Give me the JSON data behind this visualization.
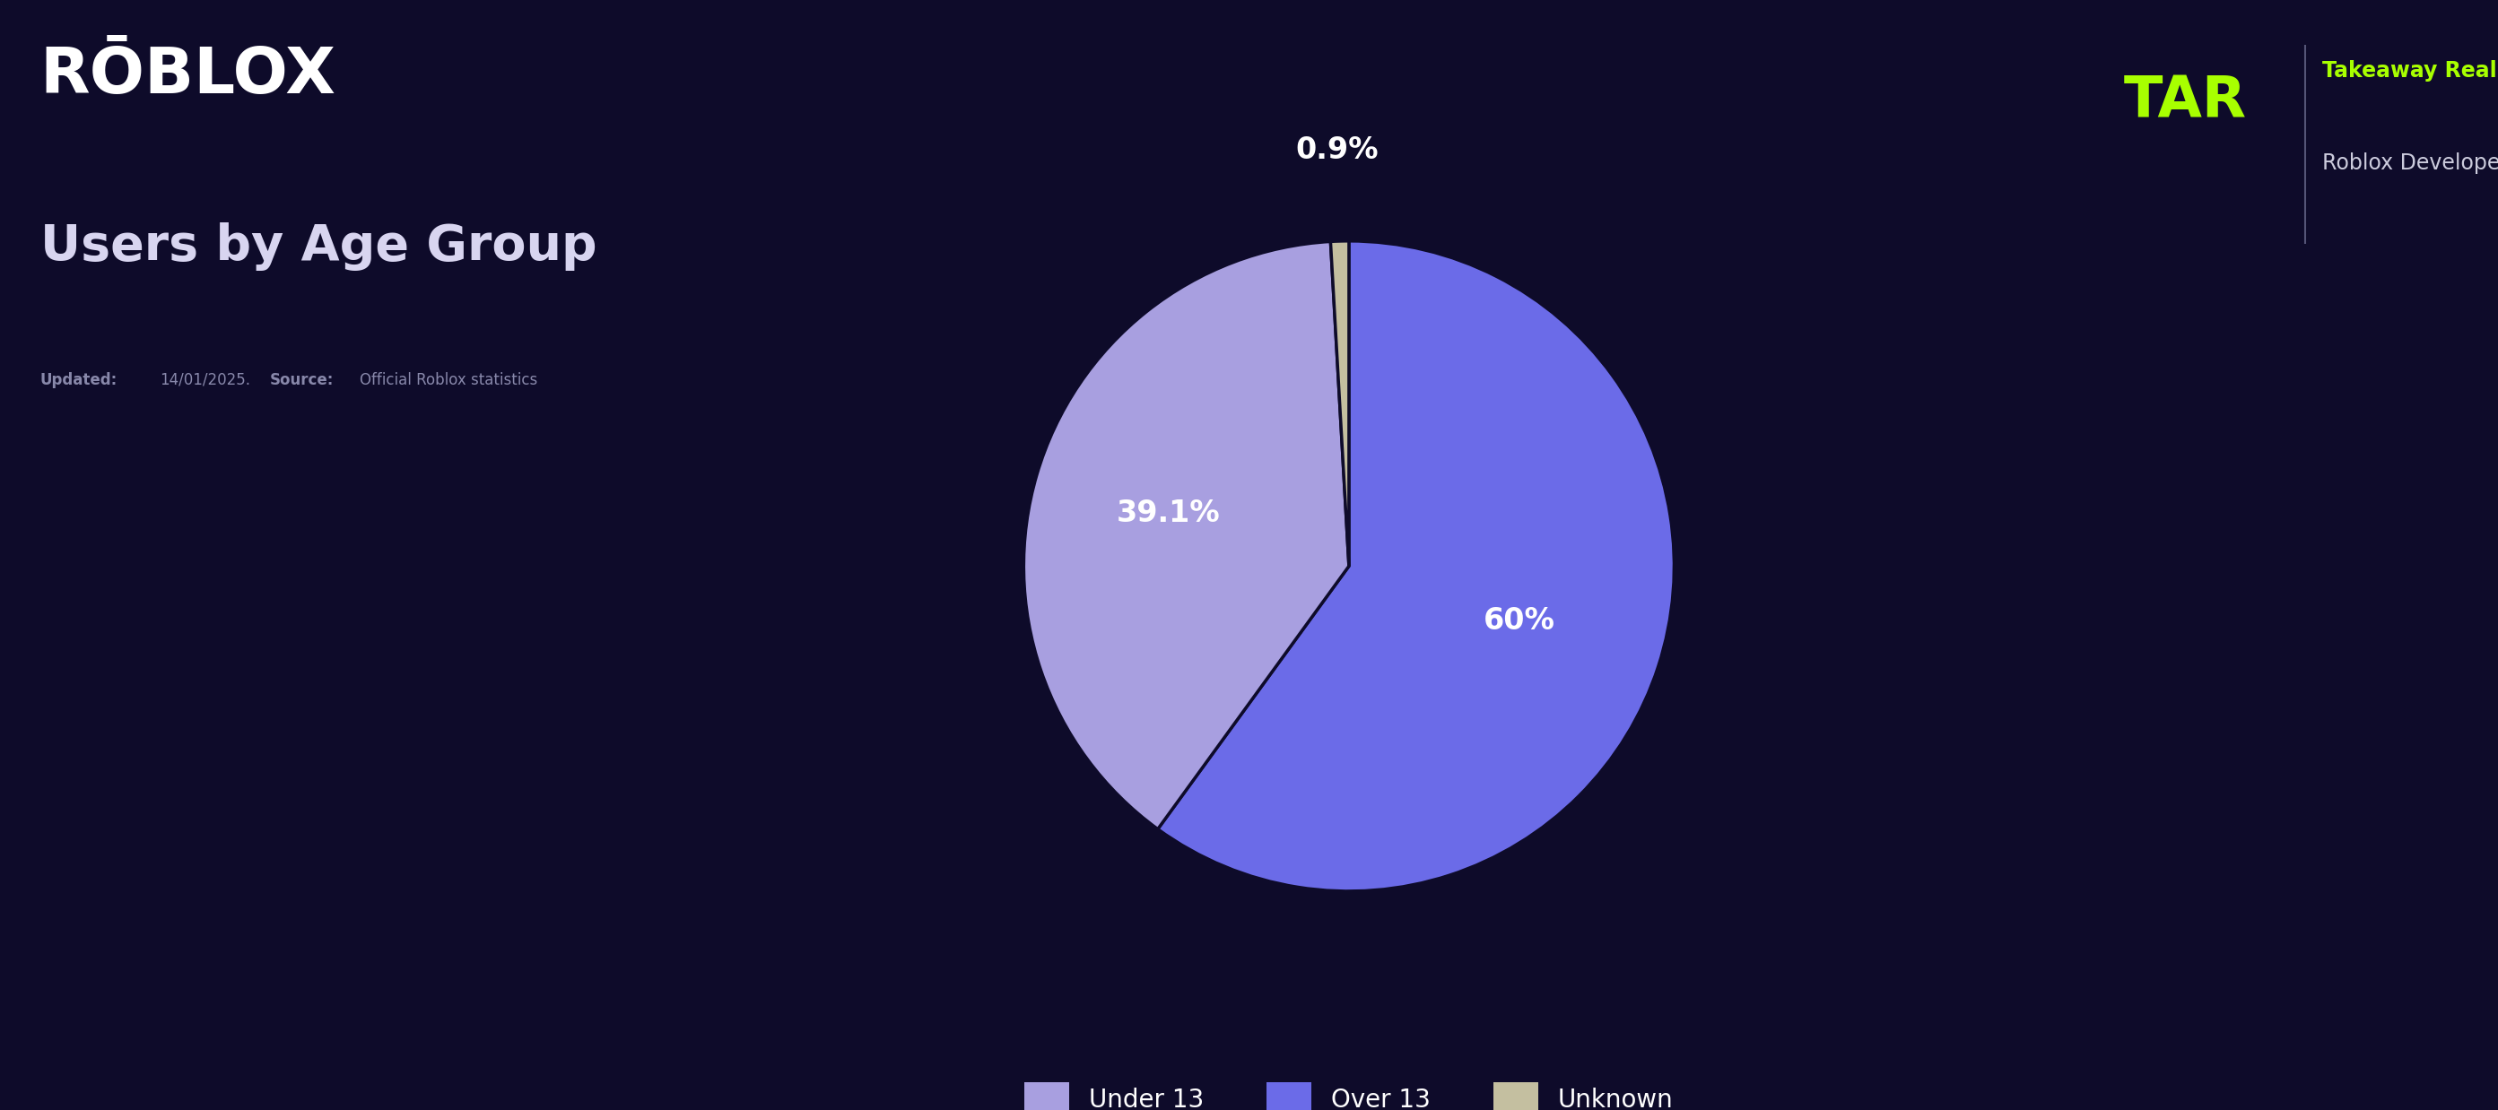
{
  "title": "Users by Age Group",
  "updated_label": "Updated:",
  "updated_date": "14/01/2025.",
  "source_label": "Source:",
  "source_text": "Official Roblox statistics",
  "tar_line1": "Takeaway Reality",
  "tar_line2": "Roblox Developers",
  "labels": [
    "Over 13",
    "Under 13",
    "Unknown"
  ],
  "values": [
    60.0,
    39.1,
    0.9
  ],
  "display_labels": [
    "60%",
    "39.1%",
    "0.9%"
  ],
  "colors": [
    "#6b6be8",
    "#a89fe0",
    "#c4bfa0"
  ],
  "background_color": "#0e0b2a",
  "text_color": "#ffffff",
  "title_color": "#d8d5f0",
  "source_color": "#8888aa",
  "wedge_edge_color": "#0e0b2a",
  "legend_fontsize": 20,
  "title_fontsize": 40,
  "roblox_fontsize": 52,
  "label_fontsize": 24,
  "startangle": 90,
  "lime_color": "#a8ff00",
  "tar_text_color": "#ccccdd"
}
